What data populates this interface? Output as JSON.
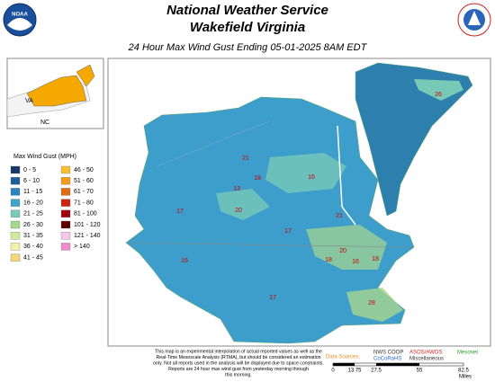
{
  "header": {
    "title": "National Weather Service",
    "office": "Wakefield Virginia",
    "subtitle": "24 Hour Max Wind Gust Ending 05-01-2025 8AM EDT",
    "logo_left": "NOAA"
  },
  "legend": {
    "title": "Max Wind Gust (MPH)",
    "items": [
      "0 - 5",
      "6 - 10",
      "11 - 15",
      "16 - 20",
      "21 - 25",
      "26 - 30",
      "31 - 35",
      "36 - 40",
      "41 - 45",
      "46 - 50",
      "51 - 60",
      "61 - 70",
      "71 - 80",
      "81 - 100",
      "101 - 120",
      "121 - 140",
      "> 140"
    ],
    "colors": [
      "#16386a",
      "#1f5e9c",
      "#2b84bf",
      "#41a4cc",
      "#78c9b6",
      "#a6d78e",
      "#cfea9c",
      "#f2f1ab",
      "#f4d57a",
      "#f5bf33",
      "#f19c1f",
      "#e06c12",
      "#cf2412",
      "#9e0010",
      "#5c0000",
      "#f7c7e6",
      "#ef8ccf"
    ]
  },
  "inset": {
    "states": [
      "VA",
      "NC"
    ]
  },
  "stations": [
    "26",
    "21",
    "18",
    "16",
    "13",
    "17",
    "20",
    "21",
    "17",
    "20",
    "18",
    "16",
    "18",
    "16",
    "17",
    "28"
  ],
  "disclaimer": [
    "This map is an experimental interpolation of actual reported values as well as the",
    "Real-Time Mesoscale Analysis (RTMA), but should be considered an estimation",
    "only. Not all reports used in the analysis will be displayed due to space constraints.",
    "Reports are 24 hour max wind gust from yesterday morning through",
    "this morning."
  ],
  "sources": {
    "label": "Data Sources:",
    "items": [
      "NWS COOP",
      "CoCoRaHS",
      "ASOS/AWOS",
      "Miscellaneous",
      "Mesonet"
    ]
  },
  "scale": {
    "ticks": [
      "0",
      "13.75",
      "27.5",
      "55",
      "82.5"
    ],
    "unit": "Miles"
  }
}
